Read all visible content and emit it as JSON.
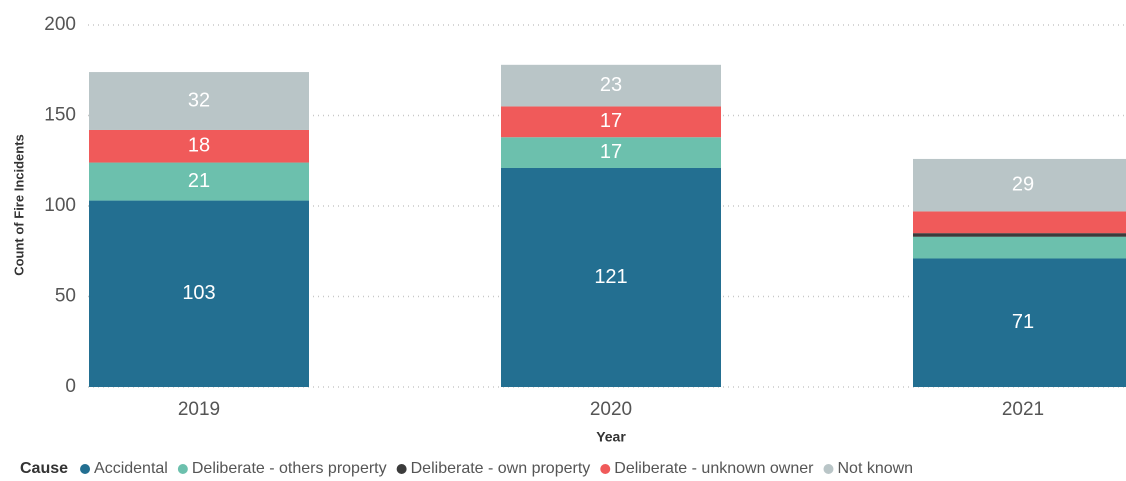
{
  "chart_data": {
    "type": "stacked_bar",
    "x_label": "Year",
    "y_label": "Count of Fire Incidents",
    "legend_title": "Cause",
    "legend_position": "bottom",
    "categories": [
      "2019",
      "2020",
      "2021"
    ],
    "ylim": [
      0,
      200
    ],
    "yticks": [
      0,
      50,
      100,
      150,
      200
    ],
    "grid": true,
    "series": [
      {
        "name": "Accidental",
        "color": "#236f91",
        "values": [
          103,
          121,
          71
        ],
        "value_labels": [
          "103",
          "121",
          "71"
        ]
      },
      {
        "name": "Deliberate - others property",
        "color": "#6cc0ad",
        "values": [
          21,
          17,
          12
        ],
        "value_labels": [
          "21",
          "17",
          null
        ]
      },
      {
        "name": "Deliberate - own property",
        "color": "#3b3b3b",
        "values": [
          null,
          null,
          2
        ],
        "value_labels": [
          null,
          null,
          null
        ]
      },
      {
        "name": "Deliberate - unknown owner",
        "color": "#f05a5a",
        "values": [
          18,
          17,
          12
        ],
        "value_labels": [
          "18",
          "17",
          null
        ]
      },
      {
        "name": "Not known",
        "color": "#b9c5c7",
        "values": [
          32,
          23,
          29
        ],
        "value_labels": [
          "32",
          "23",
          "29"
        ]
      }
    ]
  }
}
